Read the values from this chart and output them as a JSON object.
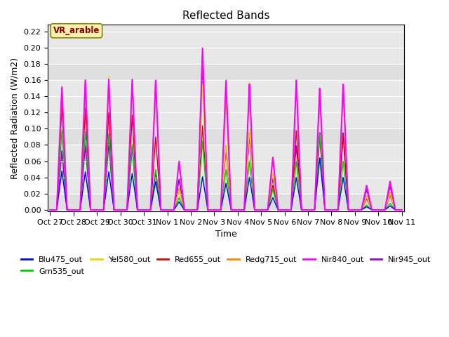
{
  "title": "Reflected Bands",
  "xlabel": "Time",
  "ylabel": "Reflected Radiation (W/m2)",
  "ylim": [
    -0.002,
    0.228
  ],
  "annotation": "VR_arable",
  "bg_gray": "#e8e8e8",
  "bg_white": "#f0f0f0",
  "series": [
    {
      "name": "Blu475_out",
      "color": "#0000ff",
      "lw": 1.0,
      "zorder": 6
    },
    {
      "name": "Grn535_out",
      "color": "#00cc00",
      "lw": 1.0,
      "zorder": 5
    },
    {
      "name": "Yel580_out",
      "color": "#dddd00",
      "lw": 1.0,
      "zorder": 4
    },
    {
      "name": "Red655_out",
      "color": "#dd0000",
      "lw": 1.0,
      "zorder": 3
    },
    {
      "name": "Redg715_out",
      "color": "#ff8800",
      "lw": 1.0,
      "zorder": 2
    },
    {
      "name": "Nir840_out",
      "color": "#ff00ff",
      "lw": 1.5,
      "zorder": 7
    },
    {
      "name": "Nir945_out",
      "color": "#9900cc",
      "lw": 1.2,
      "zorder": 1
    }
  ],
  "xtick_labels": [
    "Oct 27",
    "Oct 28",
    "Oct 29",
    "Oct 30",
    "Oct 31",
    "Nov 1",
    "Nov 2",
    "Nov 3",
    "Nov 4",
    "Nov 5",
    "Nov 6",
    "Nov 7",
    "Nov 8",
    "Nov 9",
    "Nov 10",
    "Nov 11"
  ],
  "num_days": 15,
  "day_peak_heights": {
    "Blu475": [
      0.048,
      0.047,
      0.047,
      0.045,
      0.035,
      0.01,
      0.041,
      0.033,
      0.04,
      0.015,
      0.04,
      0.064,
      0.04,
      0.004,
      0.005
    ],
    "Grn535": [
      0.098,
      0.097,
      0.094,
      0.081,
      0.05,
      0.015,
      0.085,
      0.05,
      0.06,
      0.025,
      0.06,
      0.094,
      0.06,
      0.006,
      0.008
    ],
    "Yel580": [
      0.15,
      0.16,
      0.165,
      0.16,
      0.155,
      0.025,
      0.155,
      0.08,
      0.1,
      0.045,
      0.065,
      0.15,
      0.15,
      0.016,
      0.02
    ],
    "Red655": [
      0.128,
      0.125,
      0.12,
      0.117,
      0.09,
      0.025,
      0.104,
      0.075,
      0.095,
      0.03,
      0.098,
      0.093,
      0.093,
      0.014,
      0.018
    ],
    "Redg715": [
      0.152,
      0.159,
      0.161,
      0.159,
      0.159,
      0.027,
      0.197,
      0.14,
      0.157,
      0.063,
      0.158,
      0.15,
      0.155,
      0.017,
      0.022
    ],
    "Nir840": [
      0.151,
      0.16,
      0.161,
      0.161,
      0.16,
      0.06,
      0.2,
      0.16,
      0.155,
      0.065,
      0.16,
      0.15,
      0.155,
      0.03,
      0.035
    ],
    "Nir945": [
      0.073,
      0.081,
      0.083,
      0.079,
      0.046,
      0.038,
      0.182,
      0.08,
      0.095,
      0.04,
      0.08,
      0.095,
      0.095,
      0.025,
      0.03
    ]
  },
  "legend_order": [
    "Blu475_out",
    "Grn535_out",
    "Yel580_out",
    "Red655_out",
    "Redg715_out",
    "Nir840_out",
    "Nir945_out"
  ]
}
